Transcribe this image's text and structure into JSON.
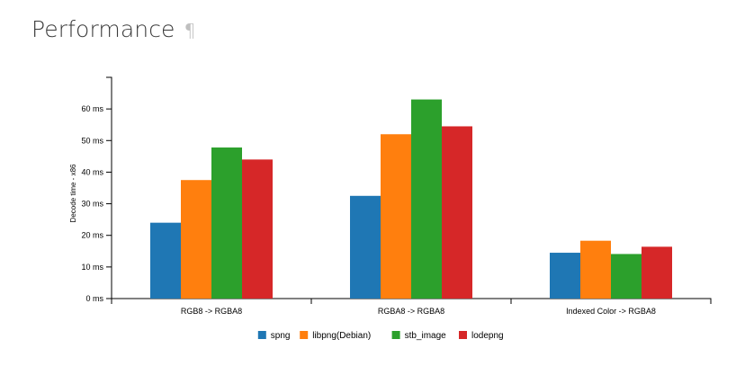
{
  "page": {
    "heading": "Performance",
    "anchor_symbol": "¶"
  },
  "chart_data": {
    "type": "bar",
    "title": "",
    "xlabel": "",
    "ylabel": "Decode time - x86",
    "categories": [
      "RGB8 -> RGBA8",
      "RGBA8 -> RGBA8",
      "Indexed Color -> RGBA8"
    ],
    "series": [
      {
        "name": "spng",
        "color": "#1f77b4",
        "values": [
          24,
          32.5,
          14.5
        ]
      },
      {
        "name": "libpng(Debian)",
        "color": "#ff7f0e",
        "values": [
          37.5,
          52,
          18.3
        ]
      },
      {
        "name": "stb_image",
        "color": "#2ca02c",
        "values": [
          47.8,
          63,
          14.1
        ]
      },
      {
        "name": "lodepng",
        "color": "#d62728",
        "values": [
          44,
          54.5,
          16.4
        ]
      }
    ],
    "yticks": [
      "0 ms",
      "10 ms",
      "20 ms",
      "30 ms",
      "40 ms",
      "50 ms",
      "60 ms"
    ],
    "ylim": [
      0,
      70
    ],
    "grid": false,
    "legend_position": "bottom-center"
  }
}
